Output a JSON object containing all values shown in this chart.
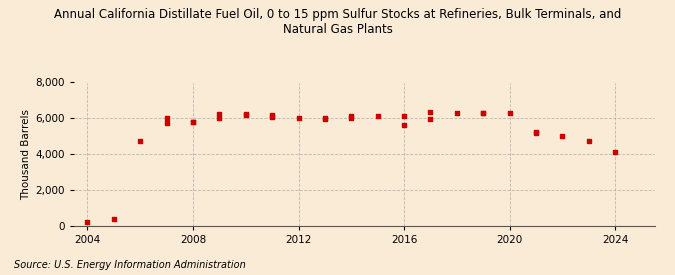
{
  "title": "Annual California Distillate Fuel Oil, 0 to 15 ppm Sulfur Stocks at Refineries, Bulk Terminals, and\nNatural Gas Plants",
  "ylabel": "Thousand Barrels",
  "source": "Source: U.S. Energy Information Administration",
  "background_color": "#faebd7",
  "plot_bg_color": "#faebd7",
  "marker_color": "#cc0000",
  "years": [
    2004,
    2005,
    2006,
    2007,
    2007,
    2008,
    2008,
    2009,
    2009,
    2010,
    2010,
    2011,
    2011,
    2012,
    2013,
    2013,
    2014,
    2014,
    2015,
    2016,
    2016,
    2017,
    2017,
    2018,
    2019,
    2019,
    2020,
    2021,
    2021,
    2022,
    2023,
    2024
  ],
  "values": [
    180,
    360,
    4700,
    6020,
    5750,
    5800,
    5780,
    6030,
    6250,
    6220,
    6200,
    6070,
    6200,
    6010,
    5960,
    6010,
    6000,
    6120,
    6120,
    6130,
    5640,
    6350,
    5980,
    6310,
    6300,
    6300,
    6310,
    5210,
    5180,
    5010,
    4720,
    4100
  ],
  "xlim": [
    2003.5,
    2025.5
  ],
  "ylim": [
    0,
    8000
  ],
  "yticks": [
    0,
    2000,
    4000,
    6000,
    8000
  ],
  "xticks": [
    2004,
    2008,
    2012,
    2016,
    2020,
    2024
  ],
  "grid_color": "#aaaaaa",
  "title_fontsize": 8.5,
  "axis_fontsize": 7.5,
  "source_fontsize": 7
}
